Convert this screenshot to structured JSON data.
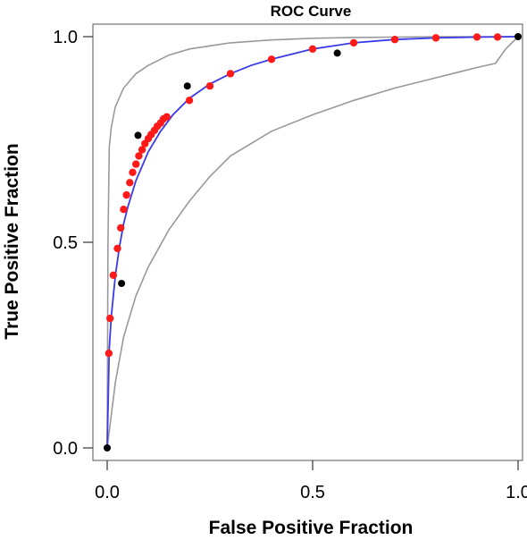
{
  "chart_data": {
    "type": "line",
    "title": "ROC Curve",
    "xlabel": "False Positive Fraction",
    "ylabel": "True Positive Fraction",
    "xlim": [
      0,
      1
    ],
    "ylim": [
      0,
      1
    ],
    "x_ticks": [
      0.0,
      0.5,
      1.0
    ],
    "y_ticks": [
      0.0,
      0.5,
      1.0
    ],
    "x_tick_labels": [
      "0.0",
      "0.5",
      "1.0"
    ],
    "y_tick_labels": [
      "0.0",
      "0.5",
      "1.0"
    ],
    "grid": false,
    "legend": "none",
    "series": [
      {
        "kind": "fitted-curve",
        "color": "#3a3ae8",
        "x": [
          0,
          0.005,
          0.01,
          0.02,
          0.03,
          0.04,
          0.05,
          0.07,
          0.1,
          0.13,
          0.16,
          0.2,
          0.25,
          0.3,
          0.35,
          0.4,
          0.5,
          0.6,
          0.7,
          0.8,
          0.9,
          1.0
        ],
        "y": [
          0,
          0.24,
          0.32,
          0.42,
          0.49,
          0.545,
          0.585,
          0.65,
          0.72,
          0.77,
          0.81,
          0.85,
          0.885,
          0.91,
          0.93,
          0.945,
          0.97,
          0.985,
          0.993,
          0.997,
          0.999,
          1.0
        ]
      },
      {
        "kind": "operating-points",
        "color": "#ff1a1a",
        "x": [
          0.004,
          0.007,
          0.015,
          0.025,
          0.033,
          0.04,
          0.047,
          0.055,
          0.062,
          0.07,
          0.077,
          0.085,
          0.092,
          0.1,
          0.107,
          0.115,
          0.122,
          0.13,
          0.137,
          0.145,
          0.2,
          0.25,
          0.3,
          0.4,
          0.5,
          0.6,
          0.7,
          0.8,
          0.9,
          0.95
        ],
        "y": [
          0.23,
          0.315,
          0.42,
          0.485,
          0.535,
          0.58,
          0.615,
          0.645,
          0.67,
          0.69,
          0.71,
          0.725,
          0.74,
          0.752,
          0.762,
          0.772,
          0.782,
          0.79,
          0.8,
          0.805,
          0.845,
          0.88,
          0.91,
          0.945,
          0.97,
          0.985,
          0.993,
          0.997,
          0.999,
          0.999
        ]
      },
      {
        "kind": "empirical-points",
        "color": "#000000",
        "x": [
          0,
          0.035,
          0.075,
          0.195,
          0.56,
          1.0
        ],
        "y": [
          0,
          0.4,
          0.76,
          0.88,
          0.96,
          1.0
        ]
      },
      {
        "kind": "upper-confidence-band",
        "color": "#999999",
        "x": [
          0,
          0.002,
          0.005,
          0.01,
          0.02,
          0.04,
          0.07,
          0.1,
          0.15,
          0.2,
          0.3,
          0.4,
          0.5,
          0.6,
          0.7,
          0.8,
          0.9,
          1.0
        ],
        "y": [
          0,
          0.5,
          0.73,
          0.78,
          0.83,
          0.875,
          0.91,
          0.93,
          0.955,
          0.97,
          0.985,
          0.992,
          0.996,
          0.998,
          0.999,
          1.0,
          1.0,
          1.0
        ]
      },
      {
        "kind": "lower-confidence-band",
        "color": "#999999",
        "x": [
          0,
          0.02,
          0.04,
          0.07,
          0.1,
          0.15,
          0.2,
          0.25,
          0.3,
          0.4,
          0.5,
          0.6,
          0.7,
          0.8,
          0.9,
          0.945,
          0.97,
          1.0
        ],
        "y": [
          0,
          0.16,
          0.27,
          0.37,
          0.44,
          0.53,
          0.6,
          0.66,
          0.71,
          0.77,
          0.81,
          0.845,
          0.875,
          0.9,
          0.925,
          0.935,
          0.97,
          1.0
        ]
      }
    ]
  }
}
